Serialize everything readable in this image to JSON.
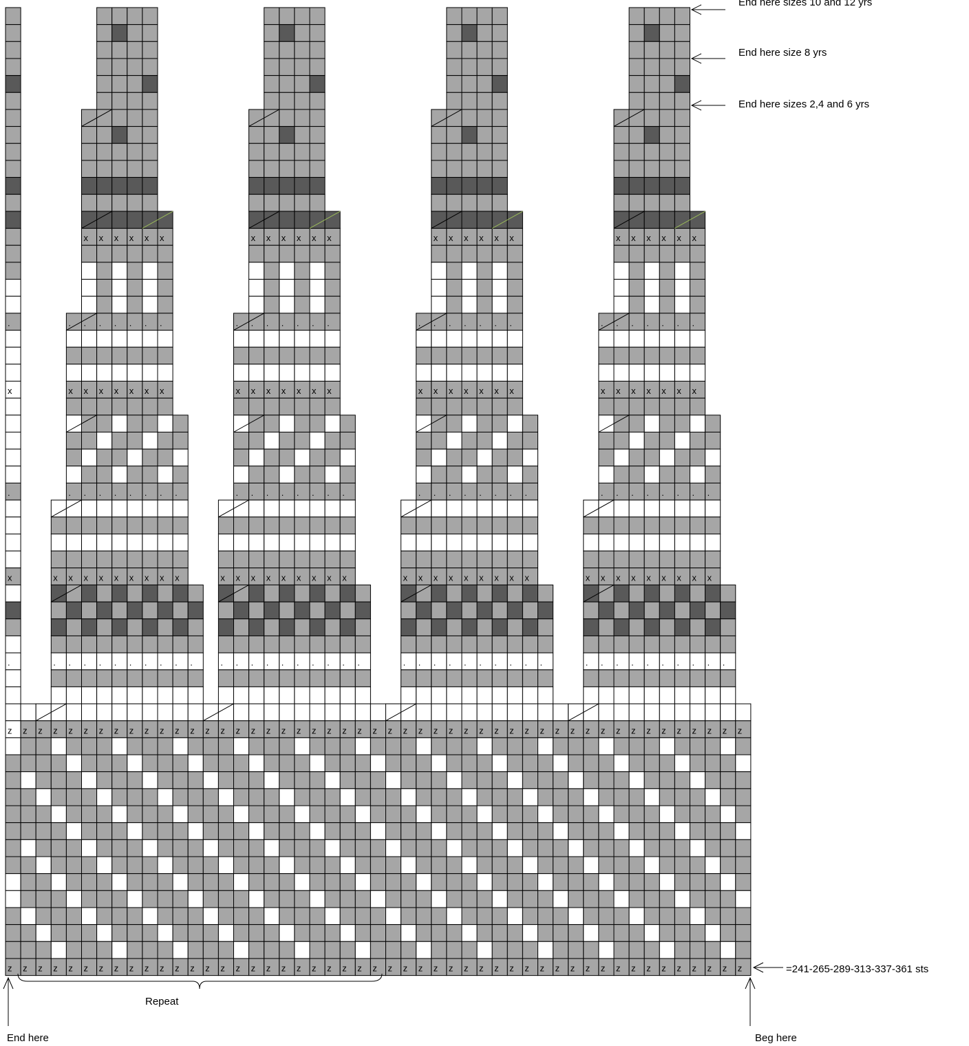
{
  "title": "",
  "colors": {
    "light": "#a6a6a6",
    "dark": "#595959",
    "white": "#ffffff",
    "grid": "#000000",
    "accent_line": "#9bbb59"
  },
  "columns": 49,
  "row_prefixes": {
    "48": "VVVVVVVVVVVVVVVVVVVVVVVVVVVVVVVVVVVVVVVVVVVVVVVVV",
    "47": "ULWLLLWLWLWLLLWLWLWLLLWLWLWLLLWLWLWLLLWLWLWLLLWLU",
    "46": "UWLLWLLLWLLWLLWLLLWLLWLLWLLLWLLWLLWLLLWLLWLLWLLLU",
    "45": "WWLWLWLWLLLWLWLWLWLLLWLWLWLWLLLWLWLWLWLLLWLWLWLWW",
    "44": "WPLLLLWLLLLLWLLLLWLLLLPLLLWLLLLLWLLLLWLLLLWLLLLLW",
    "43": "U.LWLLLWLLWLLWLLLWLLWLLWLLLWLLWLLWLLLWLLWLLWLLLWU",
    "42": "U.LLWLWLWLLLWLWLWLLLWLLLWLWLWLLLWLWLWLLLWLLLWLWLU",
    "41": "U.WLWLLLWLWLWLLLWLWLLLWLWLLLWLWLWLLLWLWLWLLLWLWLU",
    "40": "W.LLLWLLWLLWLLLWLLWLLLLWLLLLLWLLWLLLWLLWLLLWLLLLW",
    "39": "U.WWLLWLWLLLWLWLWWSL.LWLLWLWLLLWLWLLWLLWLLLWLWSLU",
    "38": "U.LWLWLWLLWLLLWLLWLL.LLLWLWLWLLWLLLWLLWLLLWLWLLLU",
    "37": "U.LWLLWLWWLLWWLLWLWL.LLWLLWLWWLLWWLLWLWLLLWLLWLLU",
    "36": "W.LLWLLLLWLLLLWWLLLL.LLLWLLLLWLLLLWWLLLLLWLLLLLLW",
    "35": "Z.ZZZZZZZZZZZZZZZZZZZZZZZZZZZZZZZZZZZZZZZZZZZZZZZ",
    "34": "W.SWWWWWWWWWWS.WWWWWWWWWWWWSWWWWWWWWWWSWWWWWWWWWW",
    "33": "W..LLLLLLLLL...LLLLLLLLL......LLLLLLLL...LLLLLLLLL",
    "32": "W..WWWWWWWWW...WWWWWWWWW......WWWWWWWWW...WWWWWWWW",
    "31": "U..DDDDDDDDD...DDDDDDDDD......DDDDDDDDD...DDDDDDDD",
    "30": "U..LDLLLLLDLL...LDLLLLDLD......LDLLLDLLD...LDLLLDL",
    "29": "D..DLDLDLDLD...DLDLDLDLD......DLDLDLDLD...DLDLDLDL",
    "28": "U..LLLDLLLDS...LLLDLLLDS......LLLDLLLDS...LLLDLLLD",
    "27": "X..XXXXXXXXX...XXXXXXXXX......XXXXXXXXX...XXXXXXXX",
    "26": "U..LLLLLLLLL...LLLLLLLLL......LLLLLLLLL...LLLLLLLL",
    "25": "W..WWWWWWWWW...WWWWWWWWW......WWWWWWWWW...WWWWWWWW",
    "24": "U..LLLLLLLLL...LLLLLLLLL......LLLLLLLLL...LLLLLLLL",
    "23": "W..WWWWWWWWW...WWWWWWWWW......WWWWWWWWW...WWWWWWWW"
  },
  "annotations": {
    "end_sizes_10_12": "End here sizes 10 and 12 yrs",
    "end_size_8": "End here size 8 yrs",
    "end_sizes_2_4_6": "End here sizes 2,4 and 6 yrs",
    "stitch_count": "=241-265-289-313-337-361 sts",
    "repeat": "Repeat",
    "end_here": "End here",
    "beg_here": "Beg here"
  },
  "symbols": {
    "z": "z",
    "x": "x",
    "dot": "."
  }
}
